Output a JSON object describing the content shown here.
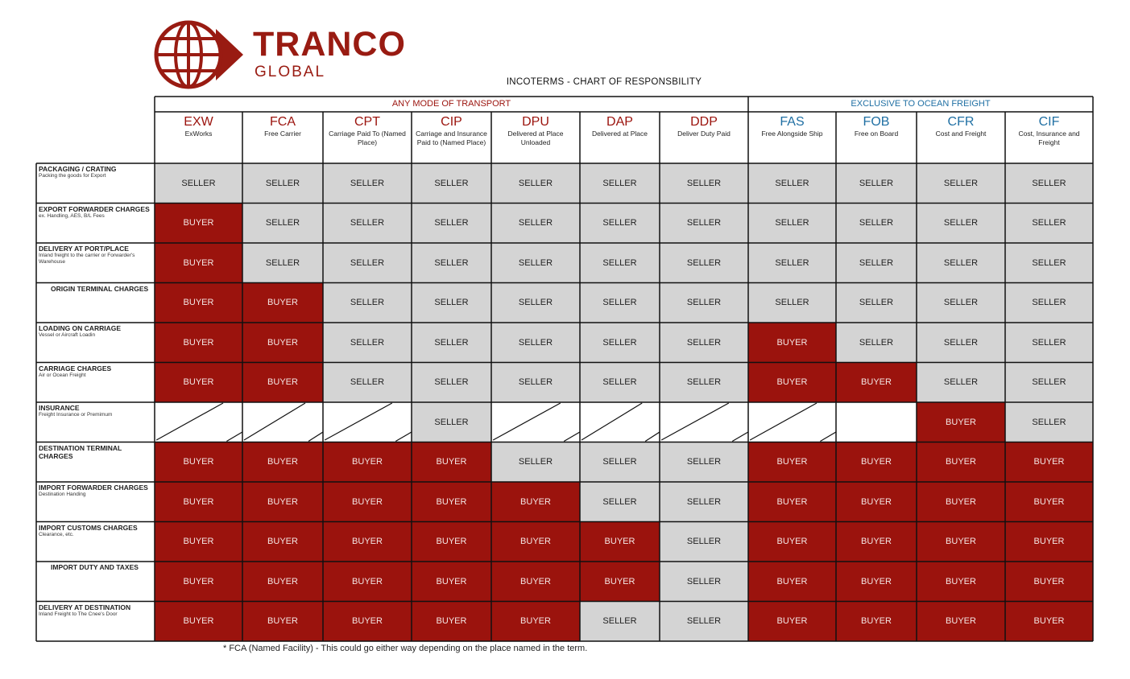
{
  "logo": {
    "main": "TRANCO",
    "sub": "GLOBAL"
  },
  "title": "INCOTERMS  - CHART OF RESPONSBILITY",
  "groups": [
    {
      "label": "ANY MODE OF TRANSPORT",
      "color": "#9b130d"
    },
    {
      "label": "EXCLUSIVE TO OCEAN FREIGHT",
      "color": "#1f6fa3"
    }
  ],
  "terms": [
    {
      "code": "EXW",
      "name": "ExWorks",
      "group": 0
    },
    {
      "code": "FCA",
      "name": "Free Carrier",
      "group": 0
    },
    {
      "code": "CPT",
      "name": "Carriage Paid To (Named Place)",
      "group": 0
    },
    {
      "code": "CIP",
      "name": "Carriage and Insurance Paid to (Named Place)",
      "group": 0
    },
    {
      "code": "DPU",
      "name": "Delivered at Place Unloaded",
      "group": 0
    },
    {
      "code": "DAP",
      "name": "Delivered at Place",
      "group": 0
    },
    {
      "code": "DDP",
      "name": "Deliver Duty Paid",
      "group": 0
    },
    {
      "code": "FAS",
      "name": "Free Alongside Ship",
      "group": 1
    },
    {
      "code": "FOB",
      "name": "Free on Board",
      "group": 1
    },
    {
      "code": "CFR",
      "name": "Cost and Freight",
      "group": 1
    },
    {
      "code": "CIF",
      "name": "Cost, Insurance and Freight",
      "group": 1
    }
  ],
  "labels": {
    "S": "SELLER",
    "B": "BUYER"
  },
  "rows": [
    {
      "title": "PACKAGING / CRATING",
      "sub": "Packing the goods for Export",
      "indent": false,
      "cells": [
        "S",
        "S",
        "S",
        "S",
        "S",
        "S",
        "S",
        "S",
        "S",
        "S",
        "S"
      ]
    },
    {
      "title": "EXPORT FORWARDER CHARGES",
      "sub": "ex. Handling, AES, B/L Fees",
      "indent": false,
      "cells": [
        "B",
        "S",
        "S",
        "S",
        "S",
        "S",
        "S",
        "S",
        "S",
        "S",
        "S"
      ]
    },
    {
      "title": "DELIVERY AT PORT/PLACE",
      "sub": "Inland freight to the carrier or Forwarder's Warehouse",
      "indent": false,
      "cells": [
        "B",
        "S",
        "S",
        "S",
        "S",
        "S",
        "S",
        "S",
        "S",
        "S",
        "S"
      ]
    },
    {
      "title": "ORIGIN TERMINAL CHARGES",
      "sub": "",
      "indent": true,
      "cells": [
        "B",
        "B",
        "S",
        "S",
        "S",
        "S",
        "S",
        "S",
        "S",
        "S",
        "S"
      ]
    },
    {
      "title": "LOADING ON CARRIAGE",
      "sub": "Vessel or Aircraft Loadin",
      "indent": false,
      "cells": [
        "B",
        "B",
        "S",
        "S",
        "S",
        "S",
        "S",
        "B",
        "S",
        "S",
        "S"
      ]
    },
    {
      "title": "CARRIAGE CHARGES",
      "sub": "Air or Ocean Freight",
      "indent": false,
      "cells": [
        "B",
        "B",
        "S",
        "S",
        "S",
        "S",
        "S",
        "B",
        "B",
        "S",
        "S"
      ]
    },
    {
      "title": "INSURANCE",
      "sub": "Freight Insurance or Premimum",
      "indent": false,
      "cells": [
        "X",
        "X",
        "X",
        "S",
        "X",
        "X",
        "X",
        "X",
        "N",
        "B",
        "S"
      ]
    },
    {
      "title": "DESTINATION TERMINAL CHARGES",
      "sub": "",
      "indent": false,
      "cells": [
        "B",
        "B",
        "B",
        "B",
        "S",
        "S",
        "S",
        "B",
        "B",
        "B",
        "B"
      ]
    },
    {
      "title": "IMPORT FORWARDER CHARGES",
      "sub": "Destination Handing",
      "indent": false,
      "cells": [
        "B",
        "B",
        "B",
        "B",
        "B",
        "S",
        "S",
        "B",
        "B",
        "B",
        "B"
      ]
    },
    {
      "title": "IMPORT CUSTOMS CHARGES",
      "sub": "Clearance, etc.",
      "indent": false,
      "cells": [
        "B",
        "B",
        "B",
        "B",
        "B",
        "B",
        "S",
        "B",
        "B",
        "B",
        "B"
      ]
    },
    {
      "title": "IMPORT DUTY AND TAXES",
      "sub": "",
      "indent": true,
      "cells": [
        "B",
        "B",
        "B",
        "B",
        "B",
        "B",
        "S",
        "B",
        "B",
        "B",
        "B"
      ]
    },
    {
      "title": "DELIVERY AT DESTINATION",
      "sub": "Inland Freight to The Cnee's Door",
      "indent": false,
      "cells": [
        "B",
        "B",
        "B",
        "B",
        "B",
        "S",
        "S",
        "B",
        "B",
        "B",
        "B"
      ]
    }
  ],
  "footnote": "* FCA (Named Facility) - This could go either way depending on the place named in the term."
}
